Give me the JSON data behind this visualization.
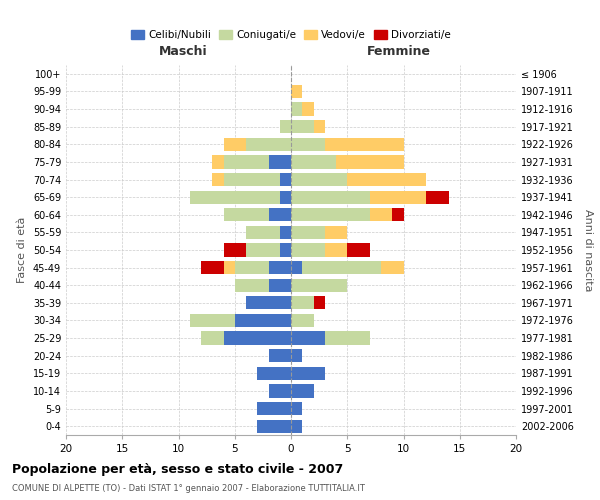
{
  "title": "Popolazione per età, sesso e stato civile - 2007",
  "subtitle": "COMUNE DI ALPETTE (TO) - Dati ISTAT 1° gennaio 2007 - Elaborazione TUTTITALIA.IT",
  "ylabel_left": "Fasce di età",
  "ylabel_right": "Anni di nascita",
  "xlim": [
    -20,
    20
  ],
  "legend_labels": [
    "Celibi/Nubili",
    "Coniugati/e",
    "Vedovi/e",
    "Divorziati/e"
  ],
  "legend_colors": [
    "#4472C4",
    "#C5D9A0",
    "#FFCC66",
    "#CC0000"
  ],
  "maschi_label": "Maschi",
  "femmine_label": "Femmine",
  "age_groups": [
    "0-4",
    "5-9",
    "10-14",
    "15-19",
    "20-24",
    "25-29",
    "30-34",
    "35-39",
    "40-44",
    "45-49",
    "50-54",
    "55-59",
    "60-64",
    "65-69",
    "70-74",
    "75-79",
    "80-84",
    "85-89",
    "90-94",
    "95-99",
    "100+"
  ],
  "birth_years": [
    "2002-2006",
    "1997-2001",
    "1992-1996",
    "1987-1991",
    "1982-1986",
    "1977-1981",
    "1972-1976",
    "1967-1971",
    "1962-1966",
    "1957-1961",
    "1952-1956",
    "1947-1951",
    "1942-1946",
    "1937-1941",
    "1932-1936",
    "1927-1931",
    "1922-1926",
    "1917-1921",
    "1912-1916",
    "1907-1911",
    "≤ 1906"
  ],
  "maschi": {
    "celibi": [
      3,
      3,
      2,
      3,
      2,
      6,
      5,
      4,
      2,
      2,
      1,
      1,
      2,
      1,
      1,
      2,
      0,
      0,
      0,
      0,
      0
    ],
    "coniugati": [
      0,
      0,
      0,
      0,
      0,
      2,
      4,
      0,
      3,
      3,
      3,
      3,
      4,
      8,
      5,
      4,
      4,
      1,
      0,
      0,
      0
    ],
    "vedovi": [
      0,
      0,
      0,
      0,
      0,
      0,
      0,
      0,
      0,
      1,
      0,
      0,
      0,
      0,
      1,
      1,
      2,
      0,
      0,
      0,
      0
    ],
    "divorziati": [
      0,
      0,
      0,
      0,
      0,
      0,
      0,
      0,
      0,
      2,
      2,
      0,
      0,
      0,
      0,
      0,
      0,
      0,
      0,
      0,
      0
    ]
  },
  "femmine": {
    "nubili": [
      1,
      1,
      2,
      3,
      1,
      3,
      0,
      0,
      0,
      1,
      0,
      0,
      0,
      0,
      0,
      0,
      0,
      0,
      0,
      0,
      0
    ],
    "coniugate": [
      0,
      0,
      0,
      0,
      0,
      4,
      2,
      2,
      5,
      7,
      3,
      3,
      7,
      7,
      5,
      4,
      3,
      2,
      1,
      0,
      0
    ],
    "vedove": [
      0,
      0,
      0,
      0,
      0,
      0,
      0,
      0,
      0,
      2,
      2,
      2,
      2,
      5,
      7,
      6,
      7,
      1,
      1,
      1,
      0
    ],
    "divorziate": [
      0,
      0,
      0,
      0,
      0,
      0,
      0,
      1,
      0,
      0,
      2,
      0,
      1,
      2,
      0,
      0,
      0,
      0,
      0,
      0,
      0
    ]
  },
  "bg_color": "#FFFFFF",
  "grid_color": "#CCCCCC",
  "bar_height": 0.75
}
